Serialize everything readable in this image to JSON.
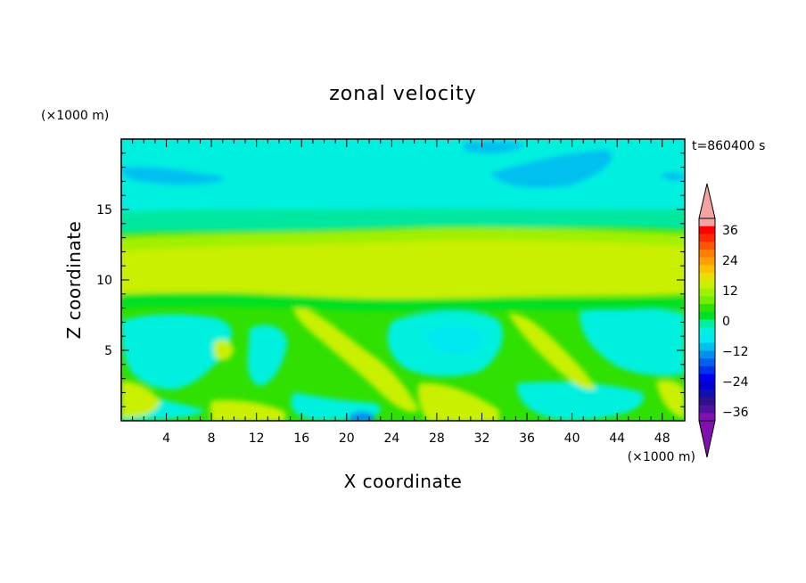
{
  "chart_data": {
    "type": "heatmap",
    "title": "zonal velocity",
    "xlabel": "X coordinate",
    "ylabel": "Z coordinate",
    "x_unit": "(×1000 m)",
    "y_unit": "(×1000 m)",
    "time_label": "t=860400 s",
    "xlim": [
      0,
      50
    ],
    "ylim": [
      0,
      20
    ],
    "x_ticks": [
      4,
      8,
      12,
      16,
      20,
      24,
      28,
      32,
      36,
      40,
      44,
      48
    ],
    "y_ticks": [
      5,
      10,
      15
    ],
    "colorbar": {
      "levels": [
        -42,
        -39,
        -36,
        -33,
        -30,
        -27,
        -24,
        -21,
        -18,
        -15,
        -12,
        -9,
        -6,
        -3,
        0,
        3,
        6,
        9,
        12,
        15,
        18,
        21,
        24,
        27,
        30,
        33,
        36,
        39,
        42
      ],
      "labeled": [
        36,
        24,
        12,
        0,
        -12,
        -24,
        -36
      ],
      "colors": [
        "#f4a3a3",
        "#ff0000",
        "#ff2a00",
        "#ff5500",
        "#ff8000",
        "#ffa000",
        "#ffc000",
        "#e8e000",
        "#c8f000",
        "#a0f000",
        "#70f000",
        "#30e000",
        "#00e020",
        "#00f0a0",
        "#00f0e0",
        "#00e8f0",
        "#00c0f0",
        "#0090f0",
        "#0060f0",
        "#0030f0",
        "#0000f0",
        "#0000d0",
        "#1010b0",
        "#301090",
        "#5010a0",
        "#8010b0"
      ],
      "over_color": "#f4a3a3",
      "under_color": "#8010b0"
    },
    "field_description_rows": [
      {
        "z_range": [
          13,
          20
        ],
        "approx_value": -9
      },
      {
        "z_range": [
          8.5,
          13
        ],
        "approx_value": 9
      },
      {
        "z_range": [
          0,
          8.5
        ],
        "approx_value": -3
      }
    ]
  }
}
